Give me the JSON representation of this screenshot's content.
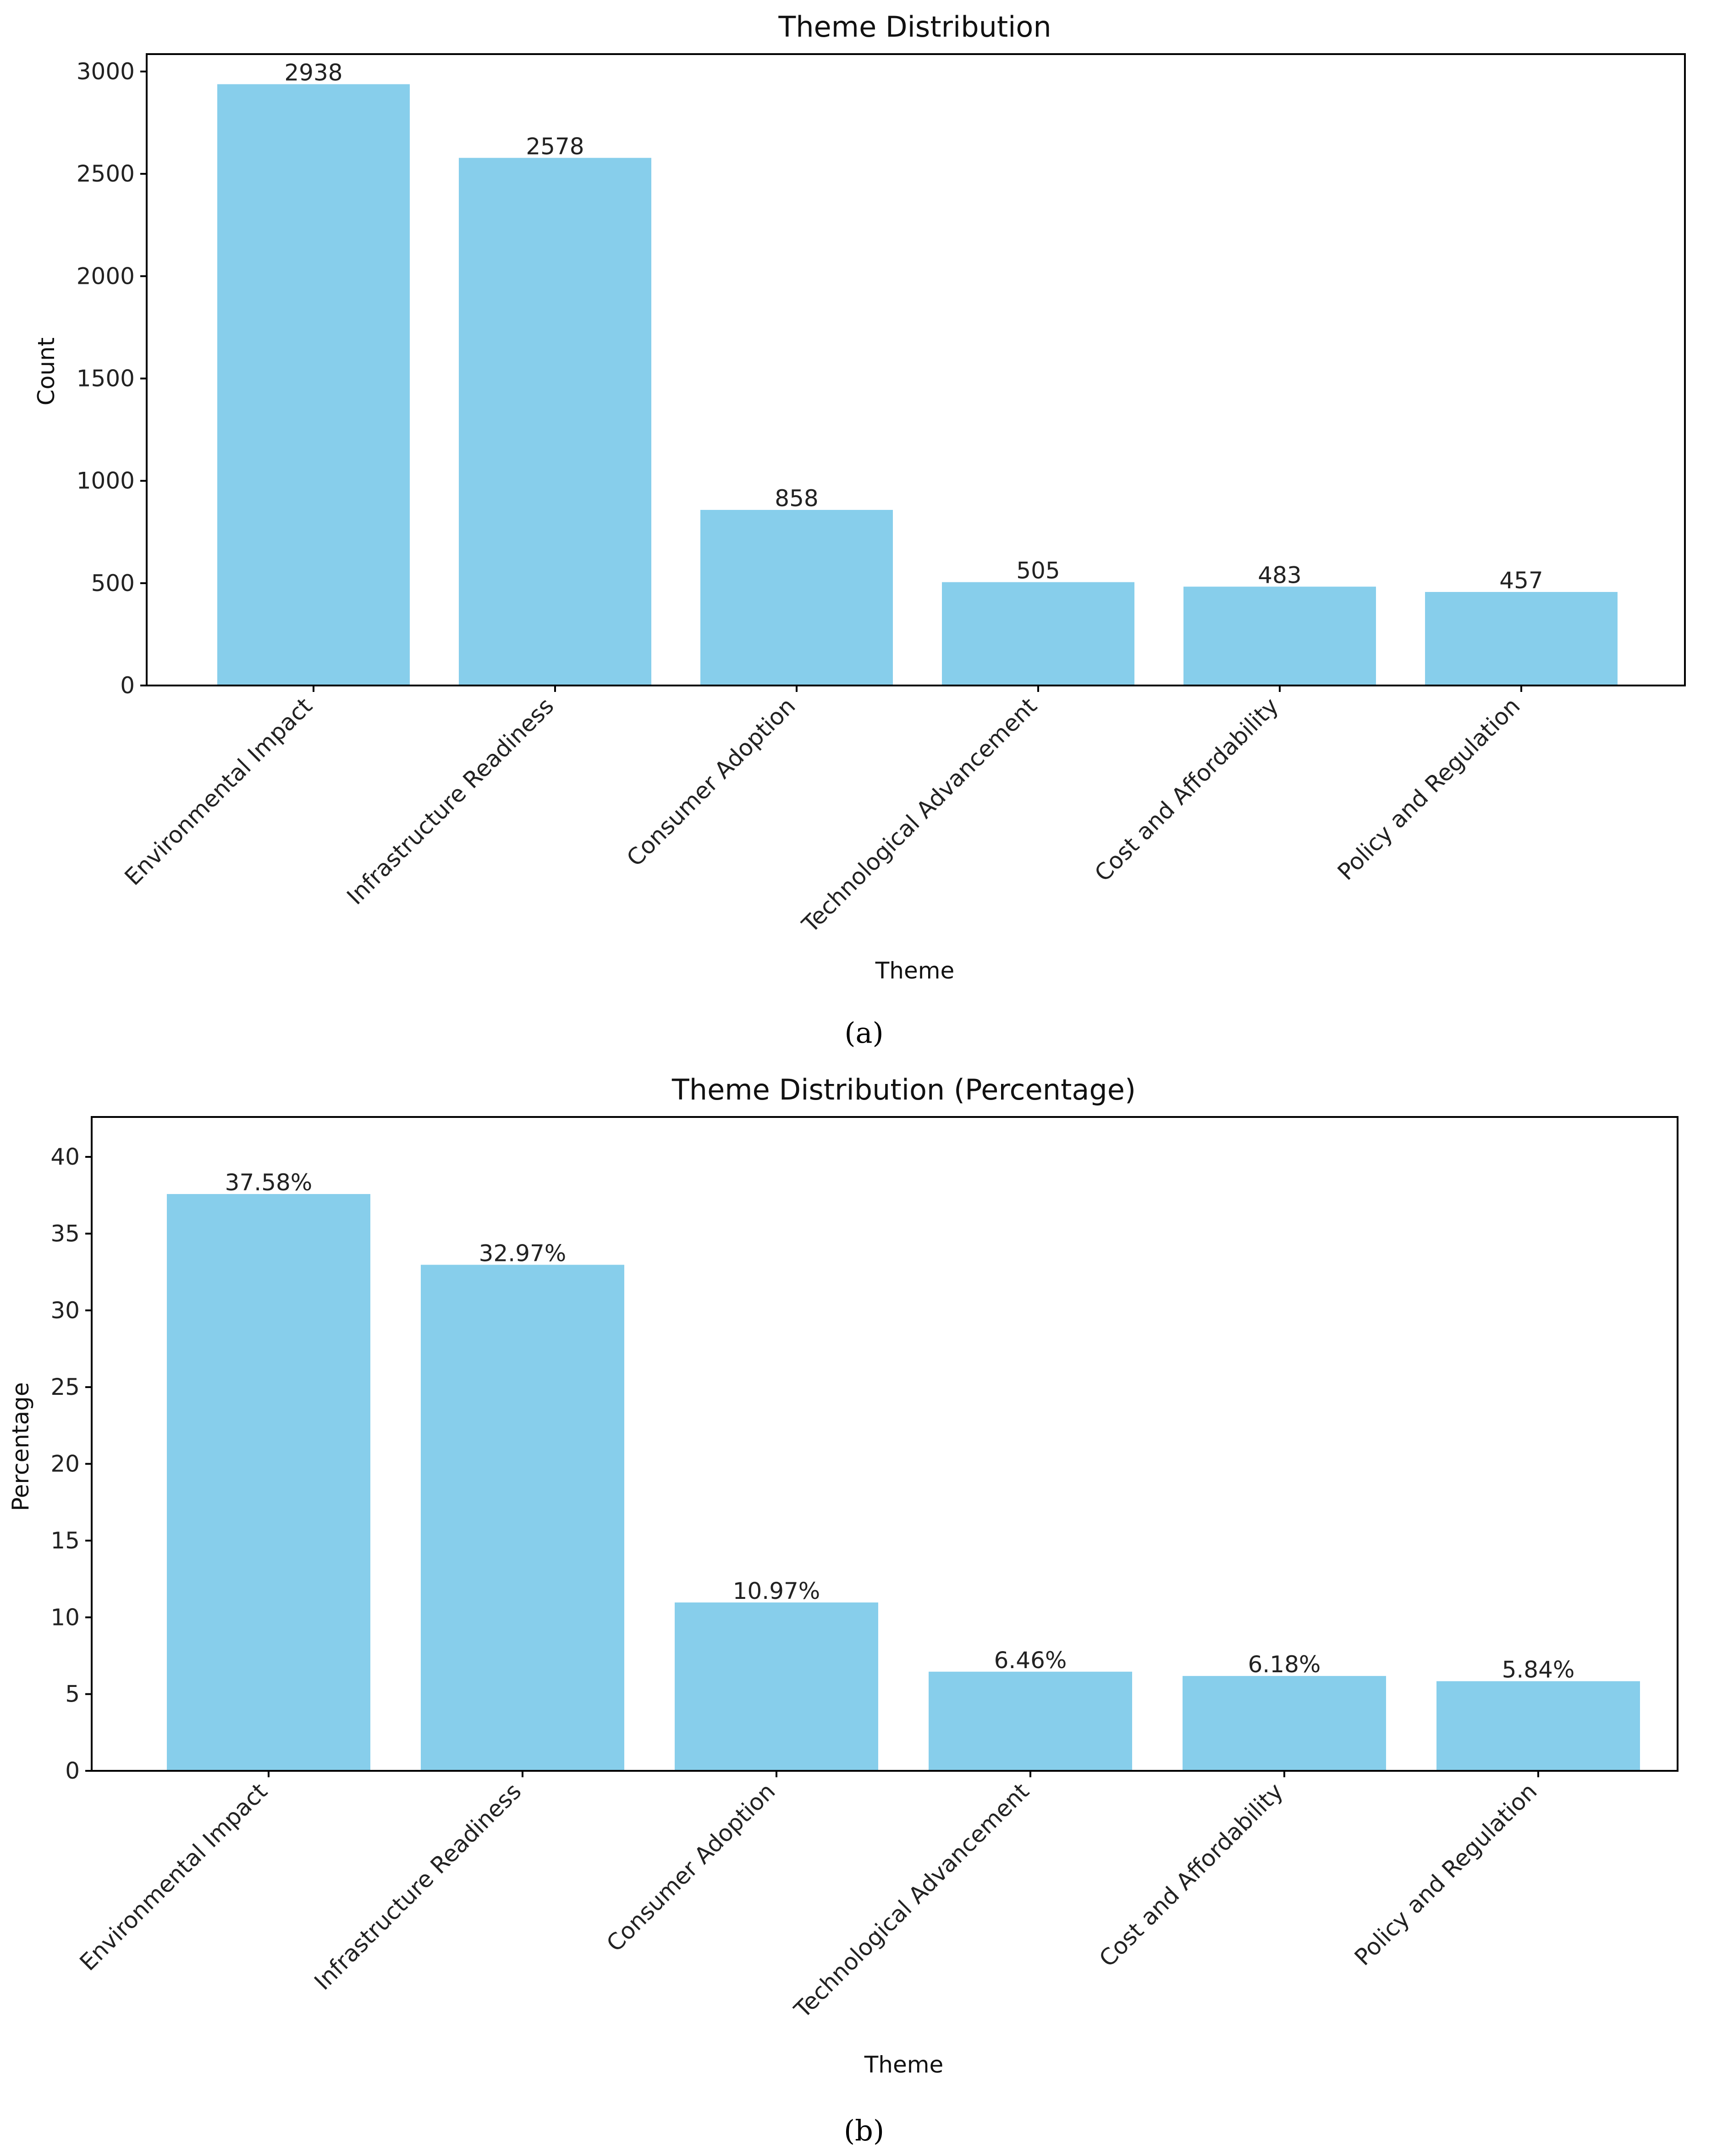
{
  "colors": {
    "bar": "#87CEEB",
    "axis": "#000000",
    "text": "#222222"
  },
  "captions": {
    "a": "(a)",
    "b": "(b)"
  },
  "chart_data": [
    {
      "type": "bar",
      "title": "Theme Distribution",
      "xlabel": "Theme",
      "ylabel": "Count",
      "categories": [
        "Environmental Impact",
        "Infrastructure Readiness",
        "Consumer Adoption",
        "Technological Advancement",
        "Cost and Affordability",
        "Policy and Regulation"
      ],
      "values": [
        2938,
        2578,
        858,
        505,
        483,
        457
      ],
      "value_labels": [
        "2938",
        "2578",
        "858",
        "505",
        "483",
        "457"
      ],
      "ylim": [
        0,
        3085
      ],
      "yticks": [
        0,
        500,
        1000,
        1500,
        2000,
        2500,
        3000
      ],
      "ytick_labels": [
        "0",
        "500",
        "1000",
        "1500",
        "2000",
        "2500",
        "3000"
      ],
      "grid": false,
      "legend": "none"
    },
    {
      "type": "bar",
      "title": "Theme Distribution (Percentage)",
      "xlabel": "Theme",
      "ylabel": "Percentage",
      "categories": [
        "Environmental Impact",
        "Infrastructure Readiness",
        "Consumer Adoption",
        "Technological Advancement",
        "Cost and Affordability",
        "Policy and Regulation"
      ],
      "values": [
        37.58,
        32.97,
        10.97,
        6.46,
        6.18,
        5.84
      ],
      "value_labels": [
        "37.58%",
        "32.97%",
        "10.97%",
        "6.46%",
        "6.18%",
        "5.84%"
      ],
      "ylim": [
        0,
        42.6
      ],
      "yticks": [
        0,
        5,
        10,
        15,
        20,
        25,
        30,
        35,
        40
      ],
      "ytick_labels": [
        "0",
        "5",
        "10",
        "15",
        "20",
        "25",
        "30",
        "35",
        "40"
      ],
      "grid": false,
      "legend": "none"
    }
  ]
}
